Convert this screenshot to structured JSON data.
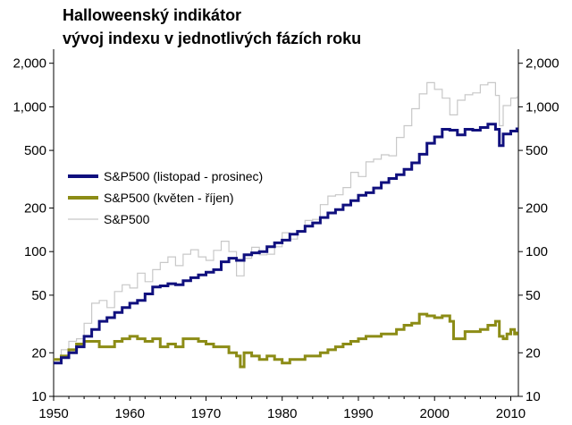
{
  "chart_data": {
    "type": "line",
    "title": "Halloweenský indikátor",
    "subtitle": "vývoj indexu v jednotlivých fázích roku",
    "x_scale": "linear",
    "y_scale": "log",
    "xlim": [
      1950,
      2011
    ],
    "ylim": [
      10,
      2500
    ],
    "x_ticks": [
      1950,
      1960,
      1970,
      1980,
      1990,
      2000,
      2010
    ],
    "y_ticks": [
      10,
      20,
      50,
      100,
      200,
      500,
      1000,
      2000
    ],
    "y_tick_labels": [
      "10",
      "20",
      "50",
      "100",
      "200",
      "500",
      "1,000",
      "2,000"
    ],
    "y_axis_right": true,
    "grid": false,
    "legend_position": "middle-left",
    "series": [
      {
        "name": "S&P500 (listopad - prosinec)",
        "color": "#10107e",
        "points": [
          [
            1950,
            17
          ],
          [
            1951,
            18.5
          ],
          [
            1952,
            20
          ],
          [
            1953,
            22
          ],
          [
            1954,
            26
          ],
          [
            1955,
            29
          ],
          [
            1956,
            33
          ],
          [
            1957,
            35
          ],
          [
            1958,
            38
          ],
          [
            1959,
            41
          ],
          [
            1960,
            44
          ],
          [
            1961,
            46
          ],
          [
            1962,
            51
          ],
          [
            1963,
            57
          ],
          [
            1964,
            58
          ],
          [
            1965,
            60
          ],
          [
            1966,
            59
          ],
          [
            1967,
            63
          ],
          [
            1968,
            66
          ],
          [
            1969,
            69
          ],
          [
            1970,
            72
          ],
          [
            1971,
            75
          ],
          [
            1972,
            85
          ],
          [
            1973,
            90
          ],
          [
            1974,
            87
          ],
          [
            1975,
            95
          ],
          [
            1976,
            98
          ],
          [
            1977,
            100
          ],
          [
            1978,
            108
          ],
          [
            1979,
            115
          ],
          [
            1980,
            120
          ],
          [
            1981,
            132
          ],
          [
            1982,
            138
          ],
          [
            1983,
            150
          ],
          [
            1984,
            158
          ],
          [
            1985,
            172
          ],
          [
            1986,
            185
          ],
          [
            1987,
            195
          ],
          [
            1988,
            210
          ],
          [
            1989,
            225
          ],
          [
            1990,
            245
          ],
          [
            1991,
            255
          ],
          [
            1992,
            275
          ],
          [
            1993,
            300
          ],
          [
            1994,
            320
          ],
          [
            1995,
            340
          ],
          [
            1996,
            370
          ],
          [
            1997,
            410
          ],
          [
            1998,
            470
          ],
          [
            1999,
            560
          ],
          [
            2000,
            620
          ],
          [
            2001,
            700
          ],
          [
            2002,
            690
          ],
          [
            2003,
            640
          ],
          [
            2004,
            700
          ],
          [
            2005,
            690
          ],
          [
            2006,
            720
          ],
          [
            2007,
            760
          ],
          [
            2008,
            700
          ],
          [
            2008.5,
            540
          ],
          [
            2009,
            650
          ],
          [
            2010,
            680
          ],
          [
            2010.8,
            720
          ]
        ]
      },
      {
        "name": "S&P500 (květen - říjen)",
        "color": "#8c8c16",
        "points": [
          [
            1950,
            18
          ],
          [
            1951,
            19
          ],
          [
            1952,
            21
          ],
          [
            1953,
            23
          ],
          [
            1954,
            24
          ],
          [
            1955,
            24
          ],
          [
            1956,
            22
          ],
          [
            1957,
            22
          ],
          [
            1958,
            24
          ],
          [
            1959,
            25
          ],
          [
            1960,
            26
          ],
          [
            1961,
            25
          ],
          [
            1962,
            24
          ],
          [
            1963,
            25
          ],
          [
            1964,
            22
          ],
          [
            1965,
            23
          ],
          [
            1966,
            22
          ],
          [
            1967,
            25
          ],
          [
            1968,
            25
          ],
          [
            1969,
            24
          ],
          [
            1970,
            23
          ],
          [
            1971,
            22
          ],
          [
            1972,
            22
          ],
          [
            1973,
            20
          ],
          [
            1974,
            19
          ],
          [
            1974.5,
            16
          ],
          [
            1975,
            20
          ],
          [
            1976,
            19
          ],
          [
            1977,
            18
          ],
          [
            1978,
            19
          ],
          [
            1979,
            18
          ],
          [
            1980,
            17
          ],
          [
            1981,
            18
          ],
          [
            1982,
            18
          ],
          [
            1983,
            19
          ],
          [
            1984,
            19
          ],
          [
            1985,
            20
          ],
          [
            1986,
            21
          ],
          [
            1987,
            22
          ],
          [
            1988,
            23
          ],
          [
            1989,
            24
          ],
          [
            1990,
            25
          ],
          [
            1991,
            26
          ],
          [
            1992,
            26
          ],
          [
            1993,
            27
          ],
          [
            1994,
            27
          ],
          [
            1995,
            29
          ],
          [
            1996,
            31
          ],
          [
            1997,
            32
          ],
          [
            1998,
            37
          ],
          [
            1999,
            36
          ],
          [
            2000,
            35
          ],
          [
            2001,
            36
          ],
          [
            2002,
            33
          ],
          [
            2002.5,
            25
          ],
          [
            2003,
            25
          ],
          [
            2004,
            28
          ],
          [
            2005,
            28
          ],
          [
            2006,
            29
          ],
          [
            2007,
            31
          ],
          [
            2008,
            33
          ],
          [
            2008.5,
            26
          ],
          [
            2009,
            25
          ],
          [
            2009.5,
            27
          ],
          [
            2010,
            29
          ],
          [
            2010.5,
            27
          ],
          [
            2010.8,
            28
          ]
        ]
      },
      {
        "name": "S&P500",
        "color": "#c8c8c8",
        "points": [
          [
            1950,
            17
          ],
          [
            1951,
            21
          ],
          [
            1952,
            24
          ],
          [
            1953,
            25
          ],
          [
            1954,
            32
          ],
          [
            1955,
            44
          ],
          [
            1956,
            46
          ],
          [
            1957,
            41
          ],
          [
            1958,
            53
          ],
          [
            1959,
            59
          ],
          [
            1960,
            56
          ],
          [
            1961,
            71
          ],
          [
            1962,
            62
          ],
          [
            1963,
            75
          ],
          [
            1964,
            84
          ],
          [
            1965,
            92
          ],
          [
            1966,
            80
          ],
          [
            1967,
            96
          ],
          [
            1968,
            103
          ],
          [
            1969,
            92
          ],
          [
            1970,
            87
          ],
          [
            1971,
            102
          ],
          [
            1972,
            118
          ],
          [
            1973,
            100
          ],
          [
            1974,
            68
          ],
          [
            1975,
            90
          ],
          [
            1976,
            107
          ],
          [
            1977,
            95
          ],
          [
            1978,
            96
          ],
          [
            1979,
            108
          ],
          [
            1980,
            135
          ],
          [
            1981,
            122
          ],
          [
            1982,
            140
          ],
          [
            1983,
            164
          ],
          [
            1984,
            167
          ],
          [
            1985,
            211
          ],
          [
            1986,
            242
          ],
          [
            1987,
            247
          ],
          [
            1988,
            277
          ],
          [
            1989,
            353
          ],
          [
            1990,
            330
          ],
          [
            1991,
            417
          ],
          [
            1992,
            435
          ],
          [
            1993,
            466
          ],
          [
            1994,
            459
          ],
          [
            1995,
            615
          ],
          [
            1996,
            740
          ],
          [
            1997,
            970
          ],
          [
            1998,
            1229
          ],
          [
            1999,
            1469
          ],
          [
            2000,
            1320
          ],
          [
            2001,
            1148
          ],
          [
            2002,
            880
          ],
          [
            2003,
            1111
          ],
          [
            2004,
            1211
          ],
          [
            2005,
            1248
          ],
          [
            2006,
            1418
          ],
          [
            2007,
            1468
          ],
          [
            2008,
            1200
          ],
          [
            2008.5,
            740
          ],
          [
            2009,
            1020
          ],
          [
            2010,
            1150
          ],
          [
            2010.8,
            1180
          ]
        ]
      }
    ]
  }
}
